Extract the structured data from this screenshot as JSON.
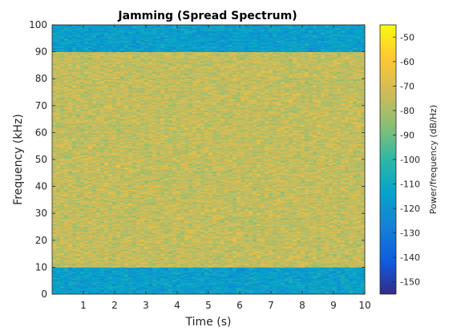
{
  "chart_data": {
    "type": "heatmap",
    "title": "Jamming (Spread Spectrum)",
    "xlabel": "Time (s)",
    "ylabel": "Frequency (kHz)",
    "xlim": [
      0,
      10
    ],
    "ylim": [
      0,
      100
    ],
    "xticks": [
      1,
      2,
      3,
      4,
      5,
      6,
      7,
      8,
      9,
      10
    ],
    "yticks": [
      0,
      10,
      20,
      30,
      40,
      50,
      60,
      70,
      80,
      90,
      100
    ],
    "colorbar": {
      "label": "Power/frequency (dB/Hz)",
      "range": [
        -155,
        -45
      ],
      "ticks": [
        -50,
        -60,
        -70,
        -80,
        -90,
        -100,
        -110,
        -120,
        -130,
        -140,
        -150
      ],
      "colormap": "parula"
    },
    "bands": [
      {
        "freq_range_khz": [
          0,
          10
        ],
        "power_db_hz": -115
      },
      {
        "freq_range_khz": [
          10,
          90
        ],
        "power_db_hz": -75
      },
      {
        "freq_range_khz": [
          90,
          100
        ],
        "power_db_hz": -115
      }
    ],
    "grid": false
  }
}
